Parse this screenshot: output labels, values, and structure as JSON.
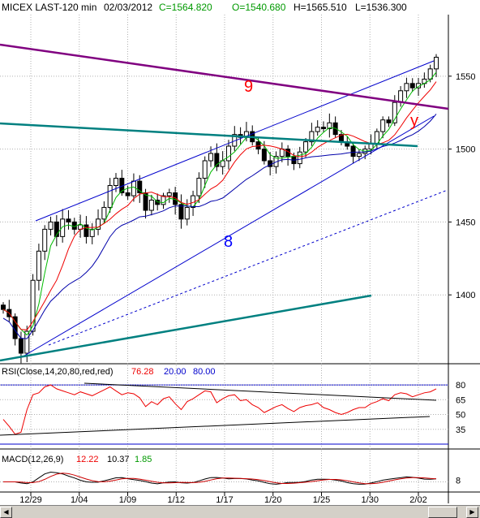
{
  "header": {
    "title": "MICEX LAST-120 min",
    "date": "02/03/2012",
    "close": "C=1564.820",
    "open": "O=1540.680",
    "high": "H=1565.510",
    "low": "L=1536.300"
  },
  "rsi_legend": {
    "label": "RSI(Close,14,20,80,red,red)",
    "value": "76.28",
    "low": "20.00",
    "high": "80.00"
  },
  "macd_legend": {
    "label": "MACD(12,26,9)",
    "macd": "12.22",
    "signal": "10.37",
    "hist": "1.85"
  },
  "chart_annotations": [
    "9",
    "8",
    "y"
  ],
  "colors": {
    "price": "#000000",
    "ma_fast": "#00bb00",
    "ma_mid": "#ee0000",
    "ma_slow": "#0000aa",
    "channel": "#0000cc",
    "trend_purple": "#800080",
    "trend_teal": "#008080",
    "rsi": "#ee0000",
    "macd": "#000000",
    "macd_signal": "#cc0000",
    "grid": "#b0b0b0",
    "label_red": "#ff0000",
    "label_blue": "#0000ff"
  },
  "chart_data": {
    "type": "candlestick",
    "title": "MICEX LAST-120 min",
    "x_tick_labels": [
      "12/29",
      "1/04",
      "1/09",
      "1/12",
      "1/17",
      "1/20",
      "1/25",
      "1/30",
      "2/02"
    ],
    "price_axis": {
      "ticks": [
        1400,
        1450,
        1500,
        1550
      ],
      "range": [
        1355,
        1590
      ]
    },
    "price_path": [
      1390,
      1385,
      1370,
      1360,
      1375,
      1410,
      1430,
      1445,
      1450,
      1440,
      1452,
      1450,
      1445,
      1448,
      1440,
      1445,
      1452,
      1460,
      1475,
      1480,
      1470,
      1468,
      1478,
      1470,
      1458,
      1465,
      1462,
      1468,
      1470,
      1462,
      1452,
      1460,
      1468,
      1480,
      1492,
      1497,
      1488,
      1492,
      1502,
      1510,
      1508,
      1512,
      1505,
      1500,
      1492,
      1488,
      1495,
      1500,
      1495,
      1490,
      1498,
      1505,
      1512,
      1515,
      1514,
      1518,
      1510,
      1505,
      1502,
      1495,
      1497,
      1500,
      1504,
      1512,
      1520,
      1518,
      1532,
      1540,
      1545,
      1542,
      1545,
      1548,
      1555,
      1563
    ],
    "rsi": {
      "levels": [
        20,
        80
      ],
      "ticks": [
        35,
        50,
        65,
        80
      ],
      "last": 76.28,
      "values": [
        45,
        38,
        30,
        32,
        55,
        70,
        72,
        78,
        80,
        76,
        74,
        72,
        70,
        73,
        71,
        69,
        72,
        75,
        78,
        74,
        70,
        72,
        71,
        67,
        58,
        63,
        60,
        66,
        68,
        61,
        55,
        63,
        66,
        70,
        74,
        73,
        62,
        66,
        69,
        70,
        64,
        65,
        60,
        57,
        52,
        55,
        58,
        60,
        56,
        53,
        57,
        59,
        60,
        62,
        57,
        55,
        52,
        50,
        52,
        55,
        57,
        57,
        61,
        63,
        66,
        64,
        70,
        72,
        71,
        68,
        70,
        72,
        73,
        76
      ]
    },
    "macd": {
      "ticks": [
        8
      ],
      "macd": 12.22,
      "signal": 10.37,
      "histogram": 1.85
    },
    "annotations": [
      "9",
      "8",
      "y"
    ]
  }
}
